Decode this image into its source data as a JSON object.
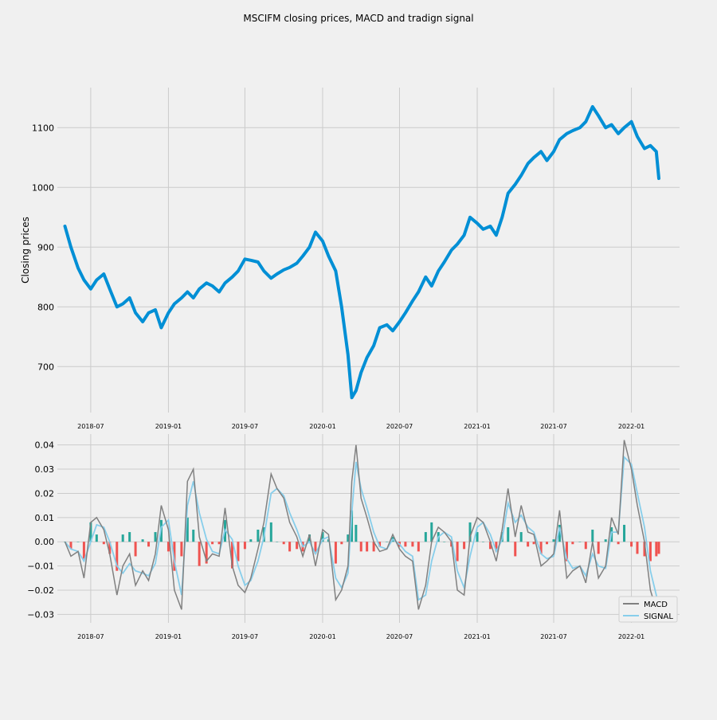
{
  "title": "MSCIFM closing prices, MACD and tradign signal",
  "colors": {
    "background": "#f0f0f0",
    "grid": "#cbcbcb",
    "price_line": "#008fd5",
    "macd_line": "#808080",
    "signal_line": "#87ceeb",
    "hist_positive": "#26a69a",
    "hist_negative": "#ef5350"
  },
  "chart_data": [
    {
      "type": "line",
      "title": "",
      "xlabel": "",
      "ylabel": "Closing prices",
      "xlim": [
        "2018-04-13",
        "2022-04-25"
      ],
      "ylim": [
        623,
        1167
      ],
      "x_ticks": [
        "2018-07",
        "2019-01",
        "2019-07",
        "2020-01",
        "2020-07",
        "2021-01",
        "2021-07",
        "2022-01"
      ],
      "y_ticks": [
        700,
        800,
        900,
        1000,
        1100
      ],
      "grid": true,
      "series": [
        {
          "x": [
            "2018-05-01",
            "2018-05-15",
            "2018-06-01",
            "2018-06-15",
            "2018-07-01",
            "2018-07-15",
            "2018-08-01",
            "2018-08-15",
            "2018-09-01",
            "2018-09-15",
            "2018-10-01",
            "2018-10-15",
            "2018-11-01",
            "2018-11-15",
            "2018-12-01",
            "2018-12-15",
            "2019-01-01",
            "2019-01-15",
            "2019-02-01",
            "2019-02-15",
            "2019-03-01",
            "2019-03-15",
            "2019-04-01",
            "2019-04-15",
            "2019-05-01",
            "2019-05-15",
            "2019-06-01",
            "2019-06-15",
            "2019-07-01",
            "2019-07-15",
            "2019-08-01",
            "2019-08-15",
            "2019-09-01",
            "2019-09-15",
            "2019-10-01",
            "2019-10-15",
            "2019-11-01",
            "2019-11-15",
            "2019-12-01",
            "2019-12-15",
            "2020-01-01",
            "2020-01-15",
            "2020-02-01",
            "2020-02-15",
            "2020-03-01",
            "2020-03-10",
            "2020-03-20",
            "2020-04-01",
            "2020-04-15",
            "2020-05-01",
            "2020-05-15",
            "2020-06-01",
            "2020-06-15",
            "2020-07-01",
            "2020-07-15",
            "2020-08-01",
            "2020-08-15",
            "2020-09-01",
            "2020-09-15",
            "2020-10-01",
            "2020-10-15",
            "2020-11-01",
            "2020-11-15",
            "2020-12-01",
            "2020-12-15",
            "2021-01-01",
            "2021-01-15",
            "2021-02-01",
            "2021-02-15",
            "2021-03-01",
            "2021-03-15",
            "2021-04-01",
            "2021-04-15",
            "2021-05-01",
            "2021-05-15",
            "2021-06-01",
            "2021-06-15",
            "2021-07-01",
            "2021-07-15",
            "2021-08-01",
            "2021-08-15",
            "2021-09-01",
            "2021-09-15",
            "2021-10-01",
            "2021-10-15",
            "2021-11-01",
            "2021-11-15",
            "2021-12-01",
            "2021-12-15",
            "2022-01-01",
            "2022-01-15",
            "2022-02-01",
            "2022-02-15",
            "2022-03-01",
            "2022-03-07"
          ],
          "values": [
            935,
            900,
            865,
            845,
            830,
            845,
            855,
            830,
            800,
            805,
            815,
            790,
            775,
            790,
            795,
            765,
            790,
            805,
            815,
            825,
            815,
            830,
            840,
            835,
            825,
            840,
            850,
            860,
            880,
            878,
            875,
            860,
            848,
            855,
            862,
            866,
            873,
            885,
            900,
            925,
            910,
            885,
            860,
            800,
            720,
            648,
            660,
            690,
            715,
            735,
            765,
            770,
            760,
            775,
            790,
            810,
            825,
            850,
            835,
            860,
            875,
            895,
            905,
            920,
            950,
            940,
            930,
            935,
            920,
            950,
            990,
            1005,
            1020,
            1040,
            1050,
            1060,
            1045,
            1060,
            1080,
            1090,
            1095,
            1100,
            1110,
            1135,
            1120,
            1100,
            1105,
            1090,
            1100,
            1110,
            1085,
            1065,
            1070,
            1060,
            1015
          ]
        }
      ]
    },
    {
      "type": "line",
      "title": "",
      "xlabel": "",
      "ylabel": "",
      "xlim": [
        "2018-04-13",
        "2022-04-25"
      ],
      "ylim": [
        -0.0335,
        0.0445
      ],
      "x_ticks": [
        "2018-07",
        "2019-01",
        "2019-07",
        "2020-01",
        "2020-07",
        "2021-01",
        "2021-07",
        "2022-01"
      ],
      "y_ticks": [
        -0.03,
        -0.02,
        -0.01,
        0.0,
        0.01,
        0.02,
        0.03,
        0.04
      ],
      "y_tick_labels": [
        "−0.03",
        "−0.02",
        "−0.01",
        "0.00",
        "0.01",
        "0.02",
        "0.03",
        "0.04"
      ],
      "grid": true,
      "legend_position": "lower-right",
      "x": [
        "2018-05-01",
        "2018-05-15",
        "2018-06-01",
        "2018-06-15",
        "2018-07-01",
        "2018-07-15",
        "2018-08-01",
        "2018-08-15",
        "2018-09-01",
        "2018-09-15",
        "2018-10-01",
        "2018-10-15",
        "2018-11-01",
        "2018-11-15",
        "2018-12-01",
        "2018-12-15",
        "2019-01-01",
        "2019-01-15",
        "2019-02-01",
        "2019-02-15",
        "2019-03-01",
        "2019-03-15",
        "2019-04-01",
        "2019-04-15",
        "2019-05-01",
        "2019-05-15",
        "2019-06-01",
        "2019-06-15",
        "2019-07-01",
        "2019-07-15",
        "2019-08-01",
        "2019-08-15",
        "2019-09-01",
        "2019-09-15",
        "2019-10-01",
        "2019-10-15",
        "2019-11-01",
        "2019-11-15",
        "2019-12-01",
        "2019-12-15",
        "2020-01-01",
        "2020-01-15",
        "2020-02-01",
        "2020-02-15",
        "2020-03-01",
        "2020-03-10",
        "2020-03-20",
        "2020-04-01",
        "2020-04-15",
        "2020-05-01",
        "2020-05-15",
        "2020-06-01",
        "2020-06-15",
        "2020-07-01",
        "2020-07-15",
        "2020-08-01",
        "2020-08-15",
        "2020-09-01",
        "2020-09-15",
        "2020-10-01",
        "2020-10-15",
        "2020-11-01",
        "2020-11-15",
        "2020-12-01",
        "2020-12-15",
        "2021-01-01",
        "2021-01-15",
        "2021-02-01",
        "2021-02-15",
        "2021-03-01",
        "2021-03-15",
        "2021-04-01",
        "2021-04-15",
        "2021-05-01",
        "2021-05-15",
        "2021-06-01",
        "2021-06-15",
        "2021-07-01",
        "2021-07-15",
        "2021-08-01",
        "2021-08-15",
        "2021-09-01",
        "2021-09-15",
        "2021-10-01",
        "2021-10-15",
        "2021-11-01",
        "2021-11-15",
        "2021-12-01",
        "2021-12-15",
        "2022-01-01",
        "2022-01-15",
        "2022-02-01",
        "2022-02-15",
        "2022-03-01",
        "2022-03-07"
      ],
      "series": [
        {
          "name": "MACD",
          "values": [
            0,
            -0.006,
            -0.004,
            -0.015,
            0.008,
            0.01,
            0.005,
            -0.005,
            -0.022,
            -0.01,
            -0.005,
            -0.018,
            -0.012,
            -0.016,
            -0.005,
            0.015,
            0.005,
            -0.02,
            -0.028,
            0.025,
            0.03,
            0.002,
            -0.008,
            -0.005,
            -0.006,
            0.014,
            -0.01,
            -0.018,
            -0.021,
            -0.015,
            -0.003,
            0.008,
            0.028,
            0.022,
            0.018,
            0.008,
            0.002,
            -0.006,
            0.003,
            -0.01,
            0.005,
            0.003,
            -0.024,
            -0.02,
            -0.01,
            0.025,
            0.04,
            0.018,
            0.01,
            0.0,
            -0.004,
            -0.003,
            0.003,
            -0.003,
            -0.006,
            -0.008,
            -0.028,
            -0.018,
            0.0,
            0.006,
            0.004,
            0.0,
            -0.02,
            -0.022,
            0.002,
            0.01,
            0.008,
            0.0,
            -0.008,
            0.005,
            0.022,
            0.002,
            0.015,
            0.004,
            0.003,
            -0.01,
            -0.008,
            -0.005,
            0.013,
            -0.015,
            -0.012,
            -0.01,
            -0.017,
            0.0,
            -0.015,
            -0.01,
            0.01,
            0.003,
            0.042,
            0.03,
            0.015,
            0.0,
            -0.02,
            -0.028,
            -0.032
          ]
        },
        {
          "name": "SIGNAL",
          "values": [
            0,
            -0.003,
            -0.004,
            -0.008,
            0.0,
            0.007,
            0.006,
            0.0,
            -0.01,
            -0.013,
            -0.009,
            -0.012,
            -0.013,
            -0.014,
            -0.009,
            0.006,
            0.009,
            -0.008,
            -0.022,
            0.015,
            0.025,
            0.012,
            0.001,
            -0.004,
            -0.005,
            0.005,
            0.001,
            -0.01,
            -0.018,
            -0.016,
            -0.008,
            0.002,
            0.02,
            0.022,
            0.019,
            0.012,
            0.005,
            -0.002,
            0.0,
            -0.005,
            0.001,
            0.002,
            -0.015,
            -0.019,
            -0.013,
            0.012,
            0.033,
            0.022,
            0.014,
            0.004,
            -0.002,
            -0.003,
            0.001,
            -0.001,
            -0.004,
            -0.006,
            -0.024,
            -0.022,
            -0.008,
            0.002,
            0.004,
            0.002,
            -0.012,
            -0.019,
            -0.006,
            0.006,
            0.008,
            0.003,
            -0.004,
            0.001,
            0.016,
            0.008,
            0.011,
            0.006,
            0.004,
            -0.005,
            -0.007,
            -0.006,
            0.006,
            -0.007,
            -0.011,
            -0.01,
            -0.014,
            -0.005,
            -0.01,
            -0.011,
            0.004,
            0.004,
            0.035,
            0.032,
            0.02,
            0.006,
            -0.012,
            -0.022,
            -0.027
          ]
        }
      ]
    }
  ]
}
